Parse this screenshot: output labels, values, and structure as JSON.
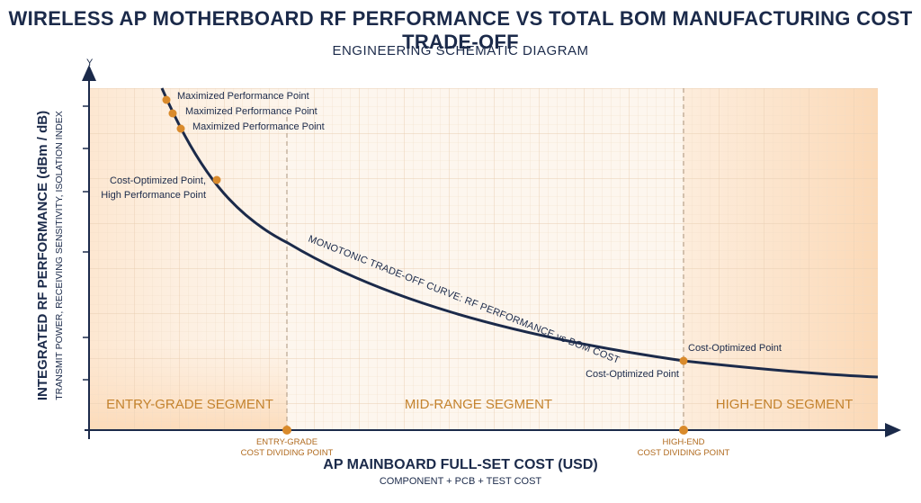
{
  "header": {
    "title": "WIRELESS AP MOTHERBOARD RF PERFORMANCE VS TOTAL BOM MANUFACTURING COST TRADE-OFF",
    "subtitle": "ENGINEERING SCHEMATIC DIAGRAM"
  },
  "axes": {
    "y_symbol": "Y",
    "y_label": "INTEGRATED RF PERFORMANCE (dBm / dB)",
    "y_sublabel": "TRANSMIT POWER, RECEIVING SENSITIVITY, ISOLATION INDEX",
    "x_label": "AP MAINBOARD FULL-SET COST (USD)",
    "x_sublabel": "COMPONENT + PCB + TEST COST"
  },
  "segments": {
    "entry": "ENTRY-GRADE SEGMENT",
    "mid": "MID-RANGE SEGMENT",
    "high": "HIGH-END SEGMENT"
  },
  "dividers": {
    "entry_line1": "ENTRY-GRADE",
    "entry_line2": "COST DIVIDING POINT",
    "high_line1": "HIGH-END",
    "high_line2": "COST DIVIDING POINT"
  },
  "curve_label": "MONOTONIC TRADE-OFF CURVE: RF PERFORMANCE vs BOM COST",
  "points": {
    "max1": "Maximized Performance Point",
    "max2": "Maximized Performance Point",
    "max3": "Maximized Performance Point",
    "cost_opt_high_1": "Cost-Optimized Point,",
    "cost_opt_high_2": "High Performance Point",
    "cost_opt_a": "Cost-Optimized Point",
    "cost_opt_b": "Cost-Optimized Point"
  },
  "colors": {
    "navy": "#1b2a4a",
    "marker": "#d98a2b",
    "segment_text": "#c4832e",
    "divider_text": "#b06a1e"
  }
}
